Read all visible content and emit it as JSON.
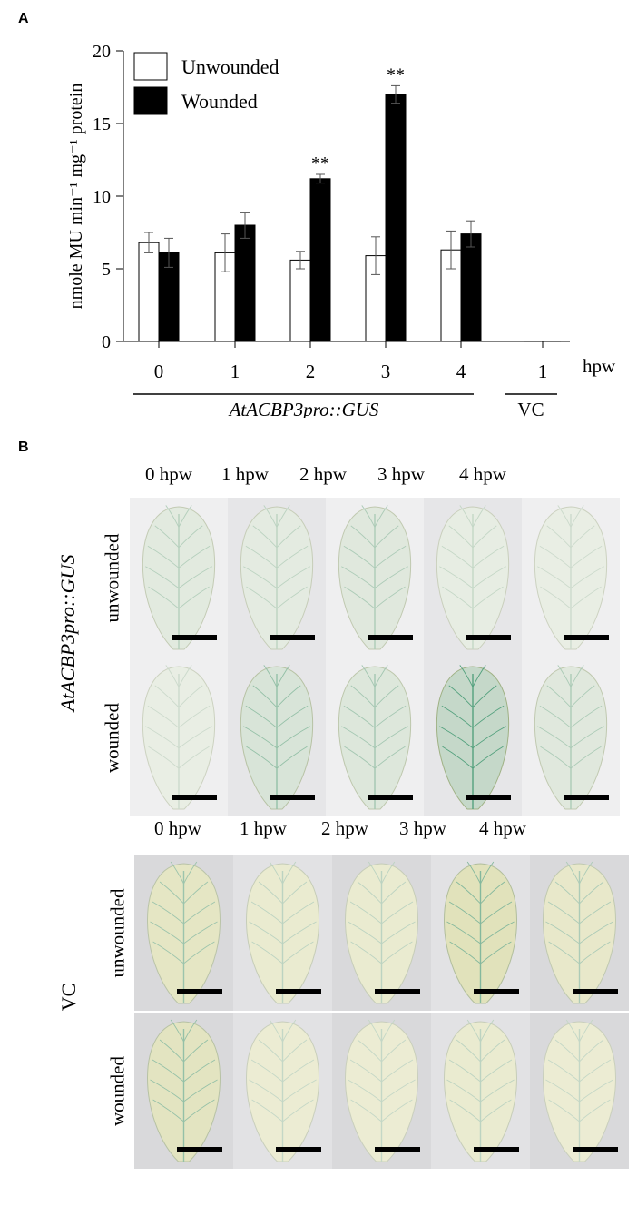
{
  "panel_a_letter": "A",
  "panel_b_letter": "B",
  "chart_data": {
    "type": "bar",
    "ylabel": "nmole MU min⁻¹ mg⁻¹ protein",
    "xlabel": "hpw",
    "ylim": [
      0,
      20
    ],
    "yticks": [
      0,
      5,
      10,
      15,
      20
    ],
    "categories": [
      "0",
      "1",
      "2",
      "3",
      "4",
      "1"
    ],
    "group_labels": [
      "AtACBP3pro::GUS",
      "VC"
    ],
    "legend_position": "top-left",
    "significance_mark": "**",
    "colors": {
      "Unwounded": "#ffffff",
      "Wounded": "#000000"
    },
    "series": [
      {
        "name": "Unwounded",
        "values": [
          6.8,
          6.1,
          5.6,
          5.9,
          6.3,
          0.0
        ],
        "errors": [
          0.7,
          1.3,
          0.6,
          1.3,
          1.3,
          0.0
        ]
      },
      {
        "name": "Wounded",
        "values": [
          6.1,
          8.0,
          11.2,
          17.0,
          7.4,
          0.0
        ],
        "errors": [
          1.0,
          0.9,
          0.3,
          0.6,
          0.9,
          0.0
        ]
      }
    ],
    "significant": [
      false,
      false,
      true,
      true,
      false,
      false
    ]
  },
  "panel_b": {
    "upper": {
      "genotype_label": "AtACBP3pro::GUS",
      "column_labels": [
        "0 hpw",
        "1 hpw",
        "2 hpw",
        "3 hpw",
        "4 hpw"
      ],
      "row_labels": [
        "unwounded",
        "wounded"
      ],
      "stain_level": [
        [
          0.25,
          0.2,
          0.3,
          0.15,
          0.1
        ],
        [
          0.1,
          0.45,
          0.35,
          0.85,
          0.3
        ]
      ]
    },
    "lower": {
      "genotype_label": "VC",
      "column_labels": [
        "0 hpw",
        "1 hpw",
        "2 hpw",
        "3 hpw",
        "4 hpw"
      ],
      "row_labels": [
        "unwounded",
        "wounded"
      ],
      "stain_level": [
        [
          0.4,
          0.2,
          0.2,
          0.55,
          0.3
        ],
        [
          0.45,
          0.15,
          0.15,
          0.2,
          0.15
        ]
      ]
    }
  }
}
